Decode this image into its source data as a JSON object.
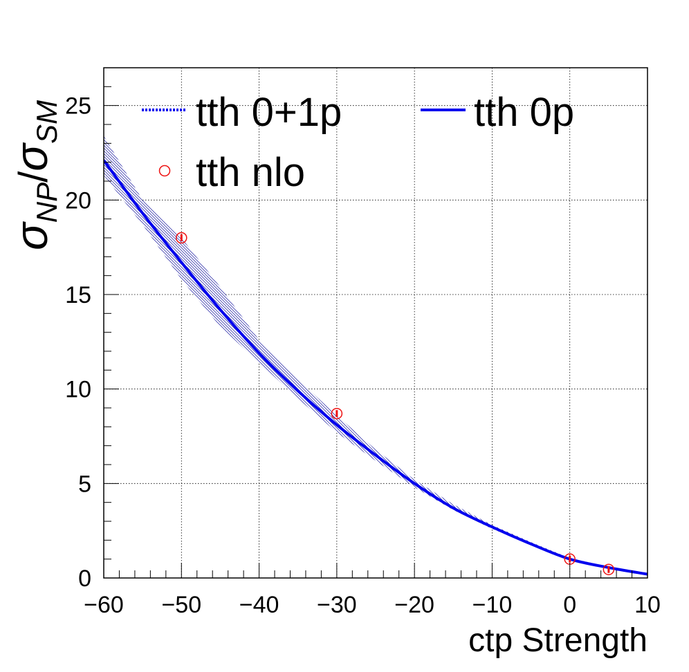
{
  "chart_data": {
    "type": "line",
    "title": "",
    "xlabel": "ctp Strength",
    "ylabel": {
      "main": "σ",
      "main_sub": "NP",
      "sep": "/",
      "den": "σ",
      "den_sub": "SM"
    },
    "xlim": [
      -60,
      10
    ],
    "ylim": [
      0,
      27
    ],
    "x_ticks": [
      "−60",
      "−50",
      "−40",
      "−30",
      "−20",
      "−10",
      "0",
      "10"
    ],
    "x_tick_values": [
      -60,
      -50,
      -40,
      -30,
      -20,
      -10,
      0,
      10
    ],
    "y_ticks": [
      "0",
      "5",
      "10",
      "15",
      "20",
      "25"
    ],
    "y_tick_values": [
      0,
      5,
      10,
      15,
      20,
      25
    ],
    "grid": true,
    "legend_position": "top",
    "legend": [
      {
        "label": "tth 0+1p",
        "style": "dotted-line",
        "color": "#0000ee"
      },
      {
        "label": "tth 0p",
        "style": "solid-line",
        "color": "#0000ee"
      },
      {
        "label": "tth nlo",
        "style": "open-circle",
        "color": "#ee1111"
      }
    ],
    "colors": {
      "line": "#0000ee",
      "band": "#0000a0",
      "points": "#ee1111"
    },
    "series": [
      {
        "name": "tth 0p",
        "style": "solid",
        "x": [
          -60,
          -55,
          -50,
          -45,
          -40,
          -35,
          -30,
          -25,
          -20,
          -15,
          -10,
          -5,
          0,
          5,
          10
        ],
        "y": [
          22.1,
          19.3,
          16.7,
          14.2,
          11.9,
          9.9,
          8.1,
          6.5,
          5.0,
          3.7,
          2.7,
          1.8,
          1.0,
          0.55,
          0.2
        ]
      },
      {
        "name": "tth 0+1p",
        "style": "dotted",
        "x": [
          -60,
          -55,
          -50,
          -45,
          -40,
          -35,
          -30,
          -25,
          -20,
          -15,
          -10,
          -5,
          0,
          5,
          10
        ],
        "y": [
          22.1,
          19.3,
          16.7,
          14.2,
          11.9,
          9.9,
          8.1,
          6.5,
          5.0,
          3.7,
          2.7,
          1.8,
          1.0,
          0.55,
          0.2
        ],
        "band_upper": [
          23.4,
          20.0,
          18.0,
          15.4,
          12.6,
          10.5,
          8.6,
          6.8,
          5.2,
          3.9,
          2.8,
          1.9,
          1.05,
          0.6,
          0.22
        ],
        "band_lower": [
          21.3,
          18.7,
          15.8,
          13.3,
          11.4,
          9.5,
          7.7,
          6.2,
          4.8,
          3.6,
          2.6,
          1.75,
          0.95,
          0.5,
          0.18
        ]
      },
      {
        "name": "tth nlo",
        "style": "markers",
        "x": [
          -50,
          -30,
          0,
          5
        ],
        "y": [
          18.0,
          8.7,
          1.0,
          0.45
        ]
      }
    ]
  }
}
